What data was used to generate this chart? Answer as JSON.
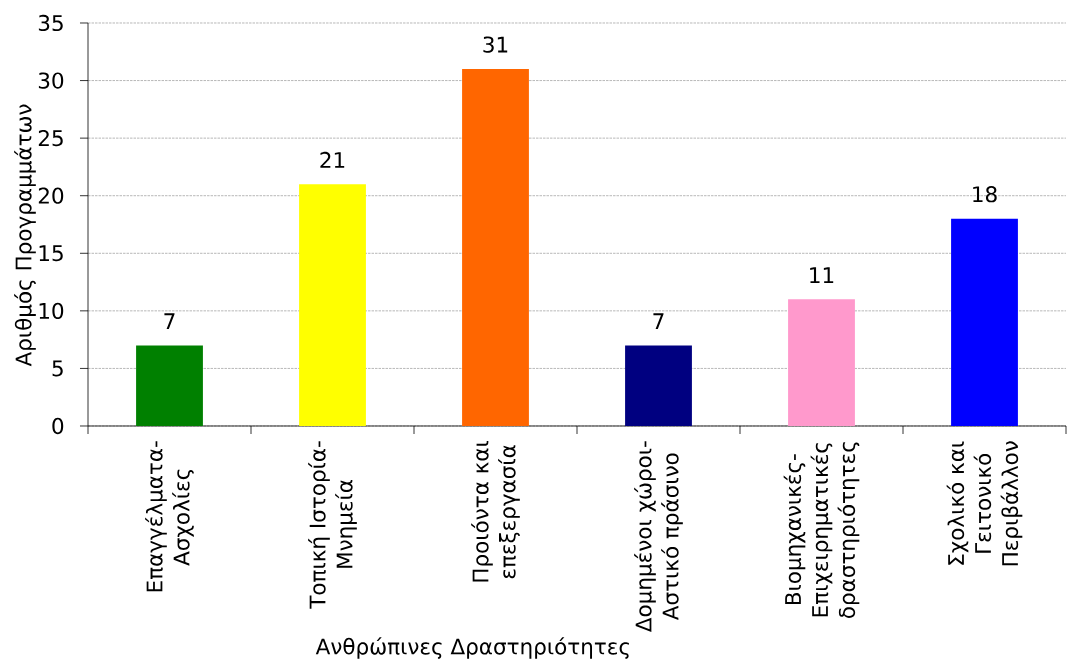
{
  "chart_data": {
    "type": "bar",
    "xlabel": "Ανθρώπινες Δραστηριότητες",
    "ylabel": "Αριθμός Προγραμμάτων",
    "categories": [
      "Επαγγέλματα-Ασχολίες",
      "Τοπική Ιστορία-Μνημεία",
      "Προιόντα και επεξεργασία",
      "Δομημένοι χώροι-Αστικό πράσινο",
      "Βιομηχανικές-Επιχειρηματικές δραστηριότητες",
      "Σχολικό και Γειτονικό Περιβάλλον"
    ],
    "values": [
      7,
      21,
      31,
      7,
      11,
      18
    ],
    "colors": [
      "#008000",
      "#ffff00",
      "#ff6600",
      "#000080",
      "#ff99cc",
      "#0000ff"
    ],
    "ylim": [
      0,
      35
    ],
    "yticks": [
      0,
      5,
      10,
      15,
      20,
      25,
      30,
      35
    ],
    "grid": "y",
    "data_labels": true
  }
}
